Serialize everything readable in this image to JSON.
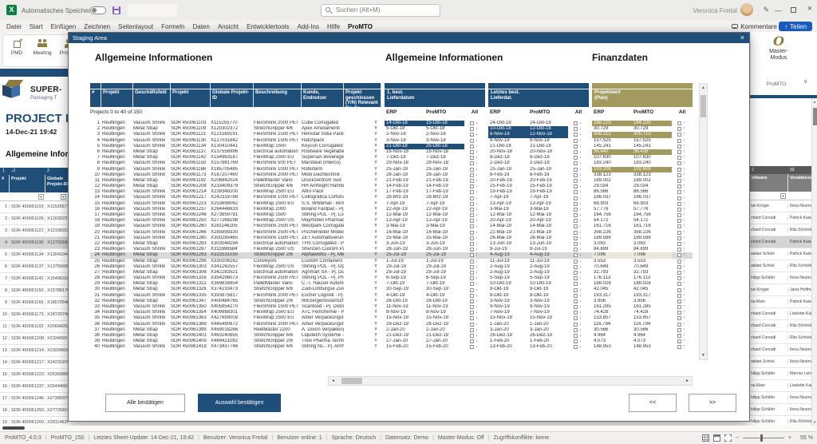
{
  "window": {
    "autosave_label": "Automatisches Speichern",
    "search_placeholder": "Suchen (Alt+M)",
    "user_name": "Veronica Freital"
  },
  "menubar": {
    "items": [
      "Datei",
      "Start",
      "Einfügen",
      "Zeichnen",
      "Seitenlayout",
      "Formeln",
      "Daten",
      "Ansicht",
      "Entwicklertools",
      "Add-Ins",
      "Hilfe",
      "ProMTO"
    ],
    "comments_label": "Kommentare",
    "share_label": "Teilen",
    "share_icon_glyph": "↑"
  },
  "ribbon": {
    "group_buttons": [
      {
        "label": "PMD",
        "icon": "pmd-icon"
      },
      {
        "label": "Meeting",
        "icon": "meeting-icon"
      },
      {
        "label": "Projekt",
        "icon": "projekt-icon"
      }
    ],
    "master_button_label": "Master-Modus",
    "master_icon_glyph": "O",
    "master_group_label": "ProMTO"
  },
  "sheet": {
    "logo_title": "SUPER-",
    "logo_subtitle": "Packaging T",
    "page_title": "PROJECT MA",
    "timestamp": "14-Dec-21 19:42",
    "section_title": "Allgemeine Informat",
    "left_table": {
      "col_indices": [
        "1",
        "2",
        "3"
      ],
      "headers": [
        "#",
        "Projekt",
        "Globale Projekt-ID"
      ]
    },
    "right_table": {
      "col_indices": [
        "2",
        "33"
      ],
      "headers": [
        "oftware",
        "Vorabbeschaf"
      ],
      "rows": [
        [
          "ian Kröger",
          "Ilona Neumann"
        ],
        [
          "chard Conradi",
          "Patrick Kaiser"
        ],
        [
          "chard Conradi",
          "Rita Schönberg"
        ],
        [
          "chard Conradi",
          "Patrick Kaiser"
        ],
        [
          "astian Scholz",
          "Patrick Kaiser"
        ],
        [
          "astian Scholz",
          "Rita Schönberg"
        ],
        [
          "hilipp Schäfer",
          "Ilona Neumann"
        ],
        [
          "ian Kröger",
          "Janis Hoffmann"
        ],
        [
          "na Klein",
          "Patrick Kaiser"
        ],
        [
          "chard Conradi",
          "Liselotte Kaiser"
        ],
        [
          "chard Conradi",
          "Rita Schönberg"
        ],
        [
          "chard Conradi",
          "Rita Schönberg"
        ],
        [
          "chard Conradi",
          "Ilona Neumann"
        ],
        [
          "astian Scholz",
          "Ilona Neumann"
        ],
        [
          "hilipp Schäfer",
          "Werner Leimba"
        ],
        [
          "na Klein",
          "Liselotte Kaiser"
        ],
        [
          "hilipp Schäfer",
          "Ilona Neumann"
        ],
        [
          "hilipp Schäfer",
          "Ilona Neumann"
        ],
        [
          "hilipp Schäfer",
          "Rita Schönberg"
        ]
      ]
    }
  },
  "modal": {
    "title": "Staging Area",
    "section_titles": [
      "Allgemeine Informationen",
      "Allgemeine Informationen",
      "Finanzdaten"
    ],
    "table": {
      "site": "Reutlingen",
      "headers": [
        "#",
        "Projekt",
        "Geschäftsfeld",
        "Projekt",
        "Globale Projekt-ID",
        "Beschreibung",
        "Kunde, Endnutzer",
        "Projekt geschlossen (Y/N) Relevant für die"
      ],
      "group_headers": {
        "first_delivery": "1. best.\nLieferdatum",
        "last_delivery": "Letztes best.\nLieferdat.",
        "project_value": "Projektwert\n(Plan)"
      },
      "sub_headers": {
        "erp": "ERP",
        "promto": "ProMTO",
        "all": "All"
      },
      "range_info": "Projects 0 to 40 of 150",
      "date_sync_glyph": "↓",
      "value_sync_glyph": "↑",
      "rows": [
        [
          "Vacuum Shrink",
          "SOR 450061103",
          "X115255770",
          "FlexShrink 2000 PET",
          "Cube Corrugated",
          "Y",
          "14-Okt-18",
          "15-Okt-18",
          "24-Okt-18",
          "24-Okt-18",
          "188.225",
          "184.225",
          "h1 hf"
        ],
        [
          "Metal Strap",
          "SOR 450061109",
          "X120302372",
          "StretchGripper 4/6",
          "Apex Arredamenti",
          "Y",
          "5-Okt-18",
          "5-Okt-18",
          "10-Okt-18",
          "12-Okt-18",
          "30.729",
          "30.729",
          "h2"
        ],
        [
          "Vacuum Shrink",
          "SOR 450061121",
          "X121569191",
          "FlexShrink 1500 PET",
          "Herostar India Packagi",
          "Y",
          "2-Nov-18",
          "2-Nov-18",
          "8-Nov-18",
          "12-Nov-18",
          "306.212",
          "305.712",
          "h2 hf"
        ],
        [
          "Vacuum Shrink",
          "SOR 450061130",
          "X127031842",
          "FlexShrink 1500 PET",
          "Hatchpack",
          "Y",
          "3-Nov-18",
          "3-Nov-18",
          "8-Nov-18",
          "8-Nov-18",
          "157.525",
          "157.525",
          ""
        ],
        [
          "Vacuum Shrink",
          "SOR 450061134",
          "X130410441",
          "FlexWrap 1500",
          "Keycon Corrugated",
          "Y",
          "21-Okt-18",
          "25-Okt-18",
          "21-Okt-18",
          "21-Okt-18",
          "145.241",
          "145.241",
          "h1"
        ],
        [
          "Metal Strap",
          "SOR 450061137",
          "X137556996",
          "Electrical automation",
          "Rootware Vegetable St",
          "Y",
          "16-Nov-18",
          "16-Nov-18",
          "20-Nov-18",
          "20-Nov-18",
          "36.440",
          "36.438",
          "hf"
        ],
        [
          "Metal Strap",
          "SOR 450061142",
          "X154963187",
          "FlexWrap 2500 EU",
          "Supersan Beverages",
          "Y",
          "7-Dez-18",
          "7-Dez-18",
          "8-Dez-18",
          "8-Dez-18",
          "107.630",
          "107.630",
          ""
        ],
        [
          "Vacuum Shrink",
          "SOR 450061150",
          "X157881769",
          "FlexShrink 500 PET",
          "Marsbeat (Interco)",
          "Y",
          "29-Nov-18",
          "29-Nov-18",
          "2-Dez-18",
          "2-Dez-18",
          "183.240",
          "183.240",
          ""
        ],
        [
          "Vacuum Shrink",
          "SOR 450061166",
          "X185705485",
          "FlexShrink 1000 PET",
          "Robofarm",
          "Y",
          "25-Jan-19",
          "25-Jan-19",
          "25-Jan-19",
          "25-Jan-19",
          "103.208",
          "102.608",
          "hf"
        ],
        [
          "Vacuum Shrink",
          "SOR 450061173",
          "X187207460",
          "FlexShrink 2000 PET",
          "Mobi Dachtechnik",
          "Y",
          "28-Jan-19",
          "28-Jan-19",
          "8-Feb-19",
          "8-Feb-19",
          "338.123",
          "338.123",
          ""
        ],
        [
          "Metal Strap",
          "SOR 450061192",
          "X206942024",
          "PalletMaster Vario",
          "Druckzentrum Süd",
          "Y",
          "21-Feb-19",
          "21-Feb-19",
          "20-Feb-19",
          "20-Feb-19",
          "169.002",
          "169.002",
          ""
        ],
        [
          "Metal Strap",
          "SOR 450061208",
          "X233409379",
          "StretchGripper 4/6",
          "HH Airfreight Hamburg",
          "Y",
          "14-Feb-19",
          "14-Feb-19",
          "25-Feb-19",
          "25-Feb-19",
          "29.034",
          "29.034",
          ""
        ],
        [
          "Vacuum Shrink",
          "SOR 450061214",
          "X239348200",
          "FlexWrap 2500 EU",
          "Altro Pack",
          "Y",
          "17-Feb-19",
          "17-Feb-19",
          "19-Feb-19",
          "19-Feb-19",
          "86.566",
          "86.566",
          ""
        ],
        [
          "Vacuum Shrink",
          "SOR 450061217",
          "X242319788",
          "FlexShrink 1000 PET",
          "Cellografica Cortona (It",
          "Y",
          "28-Mrz-19",
          "28-Mrz-19",
          "7-Apr-19",
          "7-Apr-19",
          "186.037",
          "186.037",
          ""
        ],
        [
          "Vacuum Shrink",
          "SOR 450061223",
          "X253698062",
          "FlexWrap 2500 EU",
          "S.S. Whitehall - Birming",
          "Y",
          "7-Apr-19",
          "7-Apr-19",
          "13-Apr-19",
          "13-Apr-19",
          "68.903",
          "68.903",
          ""
        ],
        [
          "Vacuum Shrink",
          "SOR 450061237",
          "X264446633",
          "FlexWrap 2000",
          "Boland Fastpac - Pj. Ex",
          "Y",
          "22-Apr-19",
          "22-Apr-19",
          "3-Mai-19",
          "3-Mai-19",
          "57.778",
          "57.778",
          ""
        ],
        [
          "Vacuum Shrink",
          "SOR 450061246",
          "X273859791",
          "FlexWrap 1500",
          "Stirling POL - Pj. Lodz I",
          "Y",
          "12-Mai-19",
          "12-Mai-19",
          "12-Mai-19",
          "12-Mai-19",
          "164.756",
          "164.756",
          ""
        ],
        [
          "Vacuum Shrink",
          "SOR 450061250",
          "X277268198",
          "FlexWrap 2500 US",
          "Mayrhofen Pharmaceut",
          "Y",
          "13-Apr-19",
          "13-Apr-19",
          "20-Apr-19",
          "20-Apr-19",
          "54.172",
          "54.172",
          ""
        ],
        [
          "Vacuum Shrink",
          "SOR 450061260",
          "X281146205",
          "FlexShrink 2500 PET",
          "Westpark Corrugated -",
          "Y",
          "3-Mai-19",
          "3-Mai-19",
          "14-Mai-19",
          "14-Mai-19",
          "161.716",
          "161.716",
          ""
        ],
        [
          "Vacuum Shrink",
          "SOR 450061266",
          "X285999330",
          "FlexShrink 2500 PET",
          "Pischelrieder Möbelspe",
          "Y",
          "16-Mai-19",
          "16-Mai-19",
          "21-Mai-19",
          "21-Mai-19",
          "358.226",
          "358.226",
          ""
        ],
        [
          "Vacuum Shrink",
          "SOR 450061280",
          "X300285465",
          "FlexShrink 1500 PET",
          "ZET Automatisierungst",
          "Y",
          "25-Mai-19",
          "25-Mai-19",
          "26-Mai-19",
          "26-Mai-19",
          "189.598",
          "189.598",
          ""
        ],
        [
          "Metal Strap",
          "SOR 450061283",
          "X303048194",
          "Electrical automation",
          "THS Corrugated - Pj. N",
          "Y",
          "3-Jun-19",
          "3-Jun-19",
          "13-Jun-19",
          "13-Jun-19",
          "3.083",
          "3.083",
          ""
        ],
        [
          "Vacuum Shrink",
          "SOR 450061287",
          "X311698584",
          "FlexWrap 2500 US",
          "Shenzen Custom Packa",
          "Y",
          "28-Jun-19",
          "28-Jun-19",
          "8-Jul-19",
          "8-Jul-19",
          "84.899",
          "84.899",
          ""
        ],
        [
          "Metal Strap",
          "SOR 450061293",
          "X322531030",
          "StretchGripper 2/6",
          "Alphaworks - Pj. Medio",
          "Y",
          "25-Jul-19",
          "25-Jul-19",
          "4-Aug-19",
          "4-Aug-19",
          "7.096",
          "7.096",
          "sel"
        ],
        [
          "Metal Strap",
          "SOR 450061296",
          "X330206162",
          "Conveyors",
          "Custom Containers Col",
          "Y",
          "1-Jul-19",
          "1-Jul-19",
          "11-Jul-19",
          "11-Jul-19",
          "3.553",
          "3.553",
          ""
        ],
        [
          "Vacuum Shrink",
          "SOR 450061303",
          "X341262557",
          "FlexWrap 2500 US",
          "Stirling POL - Pj. Opole",
          "Y",
          "29-Jul-19",
          "29-Jul-19",
          "2-Aug-19",
          "2-Aug-19",
          "70.649",
          "70.649",
          ""
        ],
        [
          "Metal Strap",
          "SOR 450061306",
          "X342283521",
          "Electrical automation",
          "Agrimart SA - Pj. Durba",
          "Y",
          "29-Jul-19",
          "29-Jul-19",
          "2-Aug-19",
          "2-Aug-19",
          "32.793",
          "32.793",
          ""
        ],
        [
          "Vacuum Shrink",
          "SOR 450061316",
          "X354296073",
          "FlexShrink 2500 PET",
          "Stirling POL - Pj. PNT (",
          "Y",
          "6-Sep-19",
          "6-Sep-19",
          "5-Sep-19",
          "5-Sep-19",
          "176.113",
          "176.113",
          ""
        ],
        [
          "Metal Strap",
          "SOR 450061322",
          "X369816954",
          "PalletMaster Vario",
          "C.-T. Hauser Automotiv",
          "Y",
          "7-Okt-19",
          "7-Okt-19",
          "10-Okt-19",
          "10-Okt-19",
          "188.028",
          "188.028",
          ""
        ],
        [
          "Metal Strap",
          "SOR 450061326",
          "X374233473",
          "StretchGripper 6/6",
          "Zuid-Limburgse Zuivelp",
          "Y",
          "30-Sep-19",
          "30-Sep-19",
          "8-Okt-19",
          "8-Okt-19",
          "42.045",
          "42.045",
          ""
        ],
        [
          "Vacuum Shrink",
          "SOR 450061335",
          "X393875817",
          "FlexShrink 2000 PET",
          "Escher Logistik - Pj. Ho",
          "Y",
          "4-Okt-19",
          "4-Okt-19",
          "8-Okt-19",
          "8-Okt-19",
          "193.317",
          "193.317",
          ""
        ],
        [
          "Metal Strap",
          "SOR 450061347",
          "X400484765",
          "StretchGripper 2/6",
          "Winzergenossenschaft",
          "Y",
          "26-Okt-19",
          "26-Okt-19",
          "3-Nov-19",
          "3-Nov-19",
          "3.956",
          "3.956",
          ""
        ],
        [
          "Vacuum Shrink",
          "SOR 450061350",
          "X405954270",
          "FlexShrink 1500 PET",
          "Scanfood - Pj. Distribut",
          "Y",
          "11-Nov-19",
          "11-Nov-19",
          "9-Nov-19",
          "9-Nov-19",
          "161.285",
          "161.285",
          ""
        ],
        [
          "Vacuum Shrink",
          "SOR 450061354",
          "X409988301",
          "FlexWrap 2500 EU",
          "ATC Feinchemie - Pj. Ir",
          "Y",
          "8-Nov-19",
          "8-Nov-19",
          "7-Nov-19",
          "7-Nov-19",
          "74.428",
          "74.428",
          ""
        ],
        [
          "Vacuum Shrink",
          "SOR 450061363",
          "X427699008",
          "FlexWrap 2500 EU",
          "Arber Verpackungstech",
          "Y",
          "15-Nov-19",
          "15-Nov-19",
          "15-Nov-19",
          "15-Nov-19",
          "153.857",
          "153.857",
          ""
        ],
        [
          "Vacuum Shrink",
          "SOR 450061389",
          "X445490872",
          "FlexShrink 2000 PET",
          "Arber Verpackungstech",
          "Y",
          "28-Dez-19",
          "28-Dez-19",
          "1-Jan-20",
          "1-Jan-20",
          "116.794",
          "116.794",
          ""
        ],
        [
          "Metal Strap",
          "SOR 450061399",
          "X459018266",
          "ReelMaster 2200",
          "A. Doorn Verpakkingste",
          "Y",
          "2-Jan-20",
          "2-Jan-20",
          "3-Jan-20",
          "3-Jan-20",
          "30.566",
          "30.566",
          ""
        ],
        [
          "Metal Strap",
          "SOR 450061403",
          "X463240855",
          "StretchGripper 6/6",
          "Liquitech Systeme - Pj.",
          "Y",
          "21-Dez-19",
          "21-Dez-19",
          "26-Dez-19",
          "26-Dez-19",
          "4.964",
          "4.964",
          ""
        ],
        [
          "Metal Strap",
          "SOR 450061409",
          "X469421082",
          "StretchGripper 2/6",
          "Triox Pharma Technolo",
          "Y",
          "27-Jan-20",
          "27-Jan-20",
          "1-Feb-20",
          "1-Feb-20",
          "4.073",
          "4.073",
          ""
        ],
        [
          "Vacuum Shrink",
          "SOR 450061419",
          "X473437746",
          "StretchGripper 4/6",
          "Stirling NL - Pj. Arnhem",
          "Y",
          "15-Feb-20",
          "15-Feb-20",
          "13-Feb-20",
          "13-Feb-20",
          "148.953",
          "148.953",
          ""
        ]
      ]
    },
    "buttons": {
      "confirm_all": "Alle bestätigen",
      "confirm_selection": "Auswahl bestätigen",
      "page_prev": "<<",
      "page_next": ">>"
    }
  },
  "statusbar": {
    "segments": [
      "ProMTO_4.0.3",
      "ProMTO_150",
      "Letztes Sheet-Update: 14-Dec-21, 19:42",
      "Benutzer: Veronica Freital",
      "Benutzer online: 1",
      "Sprache: Deutsch",
      "Datensatz: Demo",
      "Master-Modus: Off",
      "Zugriffskonflikte: keine"
    ],
    "zoom_label": "55 %"
  },
  "colors": {
    "dark_blue": "#1F4E79",
    "gold": "#A39A5F",
    "share_blue": "#185ABD",
    "excel_green": "#107C41",
    "save_purple": "#8661C5",
    "icon_gold": "#8F7D3A",
    "selected_row": "#D9D9D9"
  }
}
